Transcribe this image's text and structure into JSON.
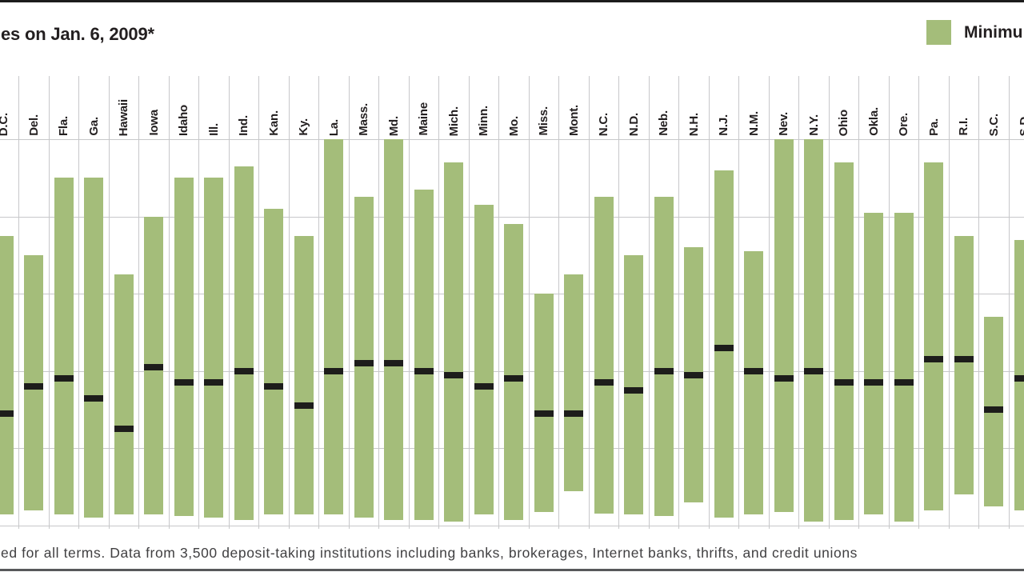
{
  "page": {
    "title_fragment": "es on Jan. 6, 2009*",
    "legend": {
      "swatch_color": "#a4bd7a",
      "label_fragment": "Minimu"
    },
    "footnote_fragment": "ed for all terms. Data from 3,500 deposit-taking institutions including banks, brokerages, Internet banks, thrifts, and credit unions"
  },
  "chart_data": {
    "type": "bar",
    "subtype": "min-max-range-bars-with-marker",
    "description": "Range of deposit rates by state on Jan. 6, 2009. Each green bar spans minimum to maximum rate; black tick marks a mid value. Y-axis labels are cropped out of frame; gridlines imply a 0-5 scale with step 1.",
    "ylim": [
      0,
      5
    ],
    "gridline_step": 1,
    "grid": true,
    "bar_color": "#a4bd7a",
    "marker_color": "#1d1d1b",
    "categories_axis": "states (abbreviated, rotated 90°)",
    "states": [
      {
        "state": "D.C.",
        "min": 0.15,
        "marker": 1.45,
        "max": 3.75
      },
      {
        "state": "Del.",
        "min": 0.2,
        "marker": 1.8,
        "max": 3.5
      },
      {
        "state": "Fla.",
        "min": 0.15,
        "marker": 1.9,
        "max": 4.5
      },
      {
        "state": "Ga.",
        "min": 0.1,
        "marker": 1.65,
        "max": 4.5
      },
      {
        "state": "Hawaii",
        "min": 0.15,
        "marker": 1.25,
        "max": 3.25
      },
      {
        "state": "Iowa",
        "min": 0.15,
        "marker": 2.05,
        "max": 4.0
      },
      {
        "state": "Idaho",
        "min": 0.12,
        "marker": 1.85,
        "max": 4.5
      },
      {
        "state": "Ill.",
        "min": 0.1,
        "marker": 1.85,
        "max": 4.5
      },
      {
        "state": "Ind.",
        "min": 0.07,
        "marker": 2.0,
        "max": 4.65
      },
      {
        "state": "Kan.",
        "min": 0.15,
        "marker": 1.8,
        "max": 4.1
      },
      {
        "state": "Ky.",
        "min": 0.15,
        "marker": 1.55,
        "max": 3.75
      },
      {
        "state": "La.",
        "min": 0.15,
        "marker": 2.0,
        "max": 5.0
      },
      {
        "state": "Mass.",
        "min": 0.1,
        "marker": 2.1,
        "max": 4.25
      },
      {
        "state": "Md.",
        "min": 0.07,
        "marker": 2.1,
        "max": 5.0
      },
      {
        "state": "Maine",
        "min": 0.07,
        "marker": 2.0,
        "max": 4.35
      },
      {
        "state": "Mich.",
        "min": 0.05,
        "marker": 1.95,
        "max": 4.7
      },
      {
        "state": "Minn.",
        "min": 0.15,
        "marker": 1.8,
        "max": 4.15
      },
      {
        "state": "Mo.",
        "min": 0.07,
        "marker": 1.9,
        "max": 3.9
      },
      {
        "state": "Miss.",
        "min": 0.18,
        "marker": 1.45,
        "max": 3.0
      },
      {
        "state": "Mont.",
        "min": 0.45,
        "marker": 1.45,
        "max": 3.25
      },
      {
        "state": "N.C.",
        "min": 0.15,
        "marker": 1.85,
        "max": 4.25
      },
      {
        "state": "N.D.",
        "min": 0.15,
        "marker": 1.75,
        "max": 3.5
      },
      {
        "state": "Neb.",
        "min": 0.12,
        "marker": 2.0,
        "max": 4.25
      },
      {
        "state": "N.H.",
        "min": 0.3,
        "marker": 1.95,
        "max": 3.6
      },
      {
        "state": "N.J.",
        "min": 0.1,
        "marker": 2.3,
        "max": 4.6
      },
      {
        "state": "N.M.",
        "min": 0.15,
        "marker": 2.0,
        "max": 3.55
      },
      {
        "state": "Nev.",
        "min": 0.18,
        "marker": 1.9,
        "max": 5.0
      },
      {
        "state": "N.Y.",
        "min": 0.05,
        "marker": 2.0,
        "max": 5.0
      },
      {
        "state": "Ohio",
        "min": 0.07,
        "marker": 1.85,
        "max": 4.7
      },
      {
        "state": "Okla.",
        "min": 0.15,
        "marker": 1.85,
        "max": 4.05
      },
      {
        "state": "Ore.",
        "min": 0.05,
        "marker": 1.85,
        "max": 4.05
      },
      {
        "state": "Pa.",
        "min": 0.2,
        "marker": 2.15,
        "max": 4.7
      },
      {
        "state": "R.I.",
        "min": 0.4,
        "marker": 2.15,
        "max": 3.75
      },
      {
        "state": "S.C.",
        "min": 0.25,
        "marker": 1.5,
        "max": 2.7
      },
      {
        "state": "S.D.",
        "min": 0.2,
        "marker": 1.9,
        "max": 3.7
      }
    ]
  }
}
